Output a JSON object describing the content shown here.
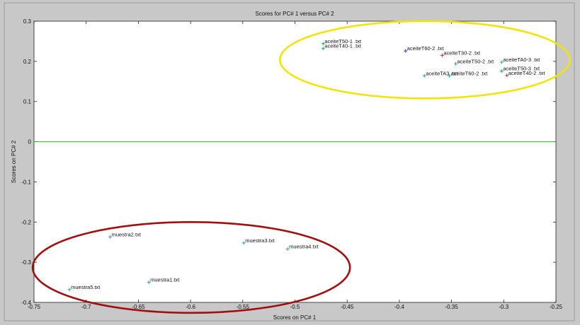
{
  "chart_data": {
    "type": "scatter",
    "title": "Scores for PC# 1 versus PC# 2",
    "xlabel": "Scores on PC# 1",
    "ylabel": "Scores on PC# 2",
    "xlim": [
      -0.75,
      -0.25
    ],
    "ylim": [
      -0.4,
      0.3
    ],
    "xticks": [
      -0.75,
      -0.7,
      -0.65,
      -0.6,
      -0.55,
      -0.5,
      -0.45,
      -0.4,
      -0.35,
      -0.3,
      -0.25
    ],
    "xtick_labels": [
      "-0.75",
      "-0.7",
      "-0.65",
      "-0.6",
      "-0.55",
      "-0.5",
      "-0.45",
      "-0.4",
      "-0.35",
      "-0.3",
      "-0.25"
    ],
    "yticks": [
      0.3,
      0.2,
      0.1,
      0,
      -0.1,
      -0.2,
      -0.3,
      -0.4
    ],
    "ytick_labels": [
      "0.3",
      "0.2",
      "0.1",
      "0",
      "-0.1",
      "-0.2",
      "-0.3",
      "-0.4"
    ],
    "zero_line": 0,
    "grid": false,
    "colors": {
      "zero_line": "#22bb22",
      "group_upper": "#f2e30a",
      "group_lower": "#a01010",
      "marker": "#2aa6a6"
    },
    "groups": [
      "upper",
      "lower"
    ],
    "points": [
      {
        "label": "aceiteT50-1 .txt",
        "x": -0.473,
        "y": 0.244,
        "color": "#22aa55"
      },
      {
        "label": "aceiteT40-1 .txt",
        "x": -0.473,
        "y": 0.232,
        "color": "#22aa55"
      },
      {
        "label": "aceiteT60-2 .txt",
        "x": -0.394,
        "y": 0.226,
        "color": "#2233aa"
      },
      {
        "label": "aceiteT30-2 .txt",
        "x": -0.359,
        "y": 0.215,
        "color": "#cc2222"
      },
      {
        "label": "aceiteT50-2 .txt",
        "x": -0.346,
        "y": 0.194,
        "color": "#2aa6a6"
      },
      {
        "label": "aceiteTA0-3 .txt",
        "x": -0.302,
        "y": 0.198,
        "color": "#2aa6a6"
      },
      {
        "label": "aceiteT50-3 .txt",
        "x": -0.302,
        "y": 0.176,
        "color": "#22aa55"
      },
      {
        "label": "aceiteT40-2 .txt",
        "x": -0.297,
        "y": 0.165,
        "color": "#cc2222"
      },
      {
        "label": "aceiteTA3 .txt",
        "x": -0.376,
        "y": 0.164,
        "color": "#2aa6a6"
      },
      {
        "label": "aceiteT60-2 .txt",
        "x": -0.352,
        "y": 0.164,
        "color": "#2aa6a6"
      },
      {
        "label": "muestra2.txt",
        "x": -0.677,
        "y": -0.237,
        "color": "#2aa6a6"
      },
      {
        "label": "muestra3.txt",
        "x": -0.549,
        "y": -0.252,
        "color": "#2aa6a6"
      },
      {
        "label": "muestra4.txt",
        "x": -0.507,
        "y": -0.267,
        "color": "#2aa6a6"
      },
      {
        "label": "muestra1.txt",
        "x": -0.64,
        "y": -0.35,
        "color": "#2aa6a6"
      },
      {
        "label": "muestra5.txt",
        "x": -0.716,
        "y": -0.368,
        "color": "#2aa6a6"
      }
    ]
  }
}
